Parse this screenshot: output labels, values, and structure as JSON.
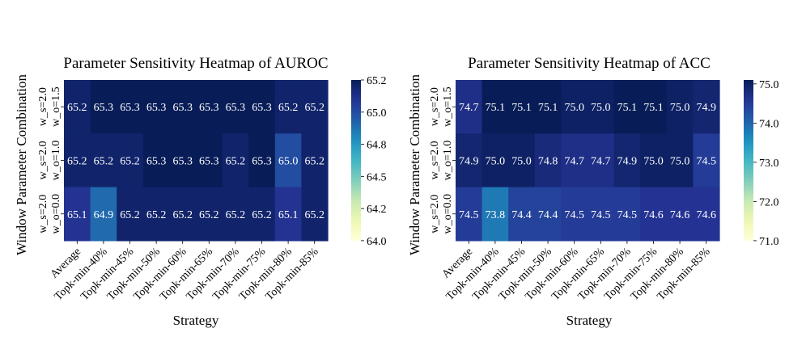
{
  "chart_data": [
    {
      "type": "heatmap",
      "title": "Parameter Sensitivity Heatmap of AUROC",
      "xlabel": "Strategy",
      "ylabel": "Window Parameter Combination",
      "x_categories": [
        "Average",
        "Topk-min-40%",
        "Topk-min-45%",
        "Topk-min-50%",
        "Topk-min-60%",
        "Topk-min-65%",
        "Topk-min-70%",
        "Topk-min-75%",
        "Topk-min-80%",
        "Topk-min-85%"
      ],
      "y_categories": [
        [
          "w_s=2.0",
          "w_o=1.5"
        ],
        [
          "w_s=2.0",
          "w_o=1.0"
        ],
        [
          "w_s=2.0",
          "w_o=0.0"
        ]
      ],
      "values": [
        [
          65.2,
          65.3,
          65.3,
          65.3,
          65.3,
          65.3,
          65.3,
          65.3,
          65.2,
          65.2
        ],
        [
          65.2,
          65.2,
          65.2,
          65.3,
          65.3,
          65.3,
          65.2,
          65.3,
          65.0,
          65.2
        ],
        [
          65.1,
          64.9,
          65.2,
          65.2,
          65.2,
          65.2,
          65.2,
          65.2,
          65.1,
          65.2
        ]
      ],
      "value_labels": [
        [
          "65.2",
          "65.3",
          "65.3",
          "65.3",
          "65.3",
          "65.3",
          "65.3",
          "65.3",
          "65.2",
          "65.2"
        ],
        [
          "65.2",
          "65.2",
          "65.2",
          "65.3",
          "65.3",
          "65.3",
          "65.2",
          "65.3",
          "65.0",
          "65.2"
        ],
        [
          "65.1",
          "64.9",
          "65.2",
          "65.2",
          "65.2",
          "65.2",
          "65.2",
          "65.2",
          "65.1",
          "65.2"
        ]
      ],
      "colorbar": {
        "vmin": 64.0,
        "vmax": 65.25,
        "ticks": [
          64.0,
          64.25,
          64.5,
          64.75,
          65.0,
          65.25
        ],
        "tick_labels": [
          "64.0",
          "64.2",
          "64.5",
          "64.8",
          "65.0",
          "65.2"
        ]
      },
      "colormap": "YlGnBu"
    },
    {
      "type": "heatmap",
      "title": "Parameter Sensitivity Heatmap of ACC",
      "xlabel": "Strategy",
      "ylabel": "Window Parameter Combination",
      "x_categories": [
        "Average",
        "Topk-min-40%",
        "Topk-min-45%",
        "Topk-min-50%",
        "Topk-min-60%",
        "Topk-min-65%",
        "Topk-min-70%",
        "Topk-min-75%",
        "Topk-min-80%",
        "Topk-min-85%"
      ],
      "y_categories": [
        [
          "w_s=2.0",
          "w_o=1.5"
        ],
        [
          "w_s=2.0",
          "w_o=1.0"
        ],
        [
          "w_s=2.0",
          "w_o=0.0"
        ]
      ],
      "values": [
        [
          74.7,
          75.1,
          75.1,
          75.1,
          75.0,
          75.0,
          75.1,
          75.1,
          75.0,
          74.9
        ],
        [
          74.9,
          75.0,
          75.0,
          74.8,
          74.7,
          74.7,
          74.9,
          75.0,
          75.0,
          74.5
        ],
        [
          74.5,
          73.8,
          74.4,
          74.4,
          74.5,
          74.5,
          74.5,
          74.6,
          74.6,
          74.6
        ]
      ],
      "value_labels": [
        [
          "74.7",
          "75.1",
          "75.1",
          "75.1",
          "75.0",
          "75.0",
          "75.1",
          "75.1",
          "75.0",
          "74.9"
        ],
        [
          "74.9",
          "75.0",
          "75.0",
          "74.8",
          "74.7",
          "74.7",
          "74.9",
          "75.0",
          "75.0",
          "74.5"
        ],
        [
          "74.5",
          "73.8",
          "74.4",
          "74.4",
          "74.5",
          "74.5",
          "74.5",
          "74.6",
          "74.6",
          "74.6"
        ]
      ],
      "colorbar": {
        "vmin": 71.0,
        "vmax": 75.1,
        "ticks": [
          71.0,
          72.0,
          73.0,
          74.0,
          75.0
        ],
        "tick_labels": [
          "71.0",
          "72.0",
          "73.0",
          "74.0",
          "75.0"
        ]
      },
      "colormap": "YlGnBu"
    }
  ]
}
